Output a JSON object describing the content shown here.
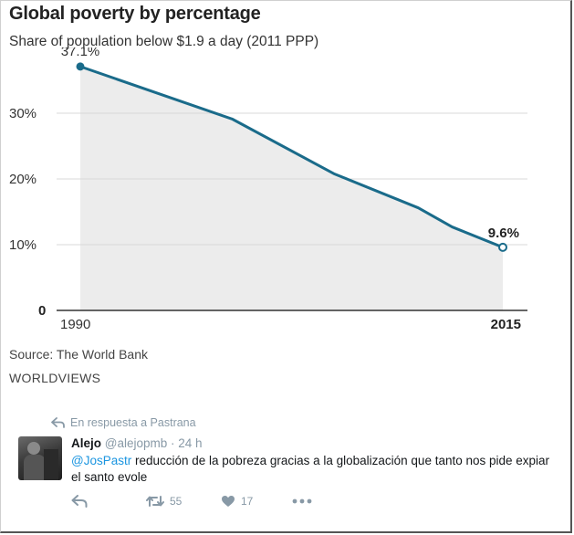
{
  "chart": {
    "title": "Global poverty by percentage",
    "subtitle": "Share of population below $1.9 a day (2011 PPP)",
    "source": "Source: The World Bank",
    "brand": "WORLDVIEWS",
    "colors": {
      "line": "#1a6b8a",
      "area": "#ececec",
      "grid": "#d9d9d9"
    }
  },
  "chart_data": {
    "type": "area",
    "x": [
      1990,
      1999,
      2005,
      2010,
      2012,
      2015
    ],
    "values": [
      37.1,
      29.1,
      20.8,
      15.6,
      12.7,
      9.6
    ],
    "xlim": [
      1990,
      2015
    ],
    "ylim": [
      0,
      40
    ],
    "yticks": [
      10,
      20,
      30
    ],
    "ytick_labels": [
      "10%",
      "20%",
      "30%"
    ],
    "baseline_label": "0",
    "xtick_labels": [
      "1990",
      "2015"
    ],
    "annotations": [
      {
        "x": 1990,
        "y": 37.1,
        "label": "37.1%"
      },
      {
        "x": 2015,
        "y": 9.6,
        "label": "9.6%"
      }
    ],
    "grid": true
  },
  "tweet": {
    "reply_context": "En respuesta a Pastrana",
    "name": "Alejo",
    "handle": "@alejopmb",
    "time": "· 24 h",
    "mention": "@JosPastr",
    "text": " reducción de la pobreza gracias a la globalización que tanto nos pide expiar el santo evole",
    "retweets": "55",
    "likes": "17",
    "icons": [
      "reply-icon",
      "retweet-icon",
      "heart-icon",
      "more-icon"
    ]
  }
}
